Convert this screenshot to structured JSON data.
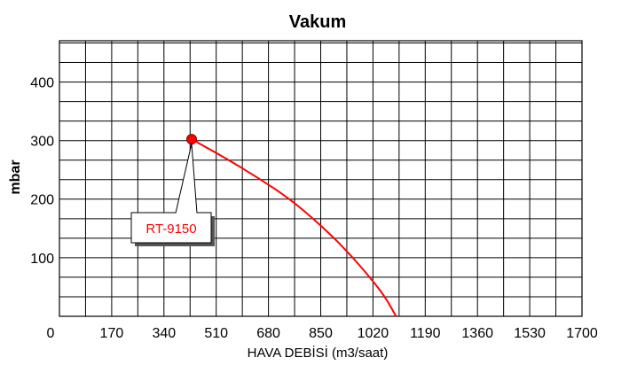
{
  "colors": {
    "background": "#ffffff",
    "grid": "#000000",
    "curve": "#ff0000",
    "marker": "#ff0000",
    "label_text": "#ff0000",
    "axis_text": "#000000"
  },
  "chart_data": {
    "type": "line",
    "title": "Vakum",
    "xlabel": "HAVA DEBİSİ (m3/saat)",
    "ylabel": "mbar",
    "xlim": [
      0,
      1700
    ],
    "ylim": [
      0,
      470
    ],
    "x_ticks": [
      0,
      170,
      340,
      510,
      680,
      850,
      1020,
      1190,
      1360,
      1530,
      1700
    ],
    "x_tick_labels": [
      "0",
      "170",
      "340",
      "510",
      "680",
      "850",
      "1020",
      "1190",
      "1360",
      "1530",
      "1700"
    ],
    "y_ticks": [
      100,
      200,
      300,
      400
    ],
    "y_tick_labels": [
      "100",
      "200",
      "300",
      "400"
    ],
    "grid": true,
    "grid_x_step": 85,
    "grid_y_step": 33.3,
    "series": [
      {
        "name": "RT-9150",
        "x": [
          430,
          540,
          650,
          750,
          840,
          920,
          1000,
          1060,
          1095
        ],
        "y": [
          302,
          270,
          235,
          200,
          160,
          120,
          73,
          33,
          0
        ]
      }
    ],
    "annotations": [
      {
        "text": "RT-9150",
        "x": 430,
        "y": 302
      }
    ]
  }
}
